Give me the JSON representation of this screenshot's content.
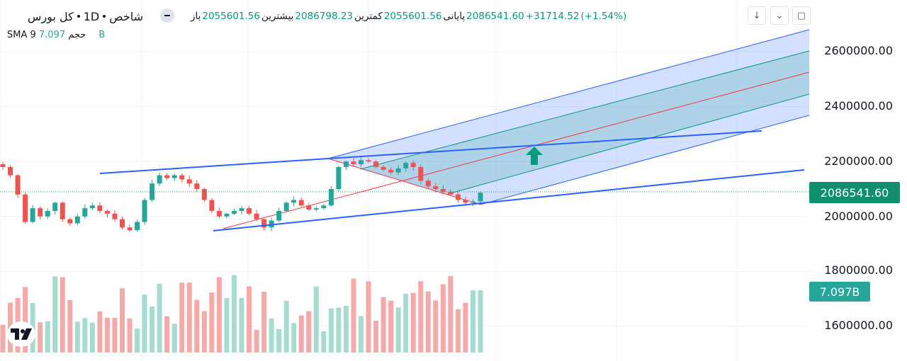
{
  "header": {
    "symbol": "کل بورس",
    "interval": "1D",
    "source": "شاخص",
    "open_label": "باز",
    "open": "2055601.56",
    "high_label": "بیشترین",
    "high": "2086798.23",
    "low_label": "کمترین",
    "low": "2055601.56",
    "close_label": "پایانی",
    "close": "2086541.60",
    "change": "+31714.52",
    "change_pct": "(+1.54%)"
  },
  "volume_legend": {
    "name": "حجم",
    "ma": "SMA 9",
    "value": "7.097B"
  },
  "price_axis": [
    "2600000.00",
    "2400000.00",
    "2200000.00",
    "2000000.00",
    "1800000.00",
    "1600000.00"
  ],
  "price_tag": "2086541.60",
  "volume_tag": "7.097B",
  "colors": {
    "up": "#26a69a",
    "down": "#ef5350",
    "trendline": "#2962ff",
    "pitchfork_outer": "#2962ff",
    "pitchfork_inner": "#089981",
    "median": "#f23645"
  },
  "icons": {
    "logo": "tradingview-logo-icon",
    "arrow": "up-arrow-icon"
  },
  "chart_data": {
    "type": "candlestick",
    "interval": "1D",
    "ylim": [
      1500000,
      2700000
    ],
    "last_close": 2086541.6,
    "close_path": [
      2180000,
      2150000,
      2080000,
      1980000,
      2030000,
      2000000,
      2020000,
      2050000,
      1990000,
      1975000,
      2000000,
      2030000,
      2040000,
      2020000,
      2010000,
      1990000,
      1960000,
      1950000,
      1980000,
      2060000,
      2120000,
      2150000,
      2140000,
      2150000,
      2135000,
      2120000,
      2100000,
      2060000,
      2020000,
      2000000,
      2010000,
      2020000,
      2030000,
      2010000,
      1990000,
      1960000,
      1985000,
      2020000,
      2050000,
      2060000,
      2040000,
      2025000,
      2030000,
      2040000,
      2100000,
      2180000,
      2200000,
      2190000,
      2205000,
      2200000,
      2180000,
      2170000,
      2160000,
      2175000,
      2195000,
      2180000,
      2130000,
      2110000,
      2100000,
      2090000,
      2080000,
      2060000,
      2050000,
      2055000,
      2086541.6
    ],
    "volume": {
      "last": "7.097B",
      "sma_period": 9
    }
  }
}
